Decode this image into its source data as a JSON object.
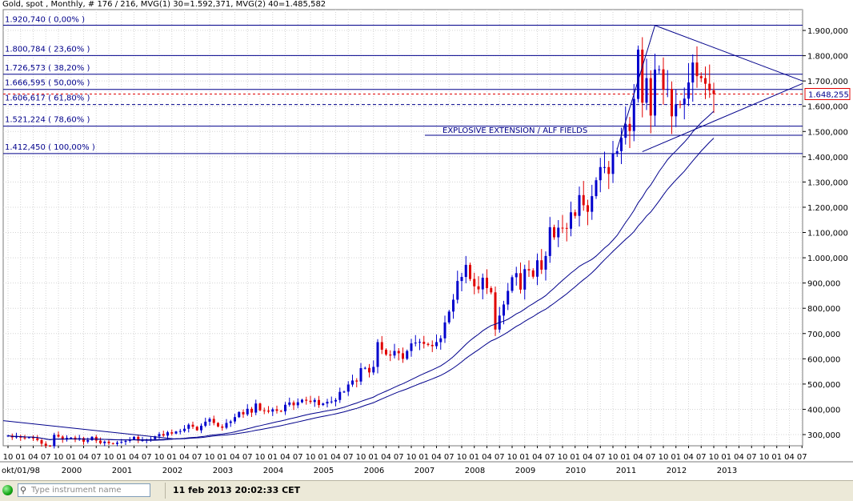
{
  "header": {
    "title": "Gold, spot , Monthly, # 176 / 216, MVG(1) 30=1.592,371, MVG(2) 40=1.485,582"
  },
  "last_price": "1.648,255",
  "annotation": "EXPLOSIVE EXTENSION / ALF FIELDS",
  "colors": {
    "line": "#00008b",
    "up": "#0000cc",
    "down": "#e00000",
    "grid": "#d4d4d4"
  },
  "fib_levels": [
    {
      "value": 1920.74,
      "label": "1.920,740 ( 0,00% )"
    },
    {
      "value": 1800.784,
      "label": "1.800,784 ( 23,60% )"
    },
    {
      "value": 1726.573,
      "label": "1.726,573 ( 38,20% )"
    },
    {
      "value": 1666.595,
      "label": "1.666,595 ( 50,00% )"
    },
    {
      "value": 1606.617,
      "label": "1.606,617 ( 61,80% )"
    },
    {
      "value": 1521.224,
      "label": "1.521,224 ( 78,60% )"
    },
    {
      "value": 1412.45,
      "label": "1.412,450 ( 100,00% )"
    }
  ],
  "statusbar": {
    "search_placeholder": "Type instrument name",
    "search_icon": "search-icon",
    "datetime": "11 feb 2013 20:02:33 CET"
  },
  "chart_data": {
    "type": "candlestick",
    "title": "Gold, spot , Monthly",
    "ylim": [
      250,
      1950
    ],
    "y_ticks": [
      {
        "v": 300,
        "label": "300,000"
      },
      {
        "v": 400,
        "label": "400,000"
      },
      {
        "v": 500,
        "label": "500,000"
      },
      {
        "v": 600,
        "label": "600,000"
      },
      {
        "v": 700,
        "label": "700,000"
      },
      {
        "v": 800,
        "label": "800,000"
      },
      {
        "v": 900,
        "label": "900,000"
      },
      {
        "v": 1000,
        "label": "1.000,000"
      },
      {
        "v": 1100,
        "label": "1.100,000"
      },
      {
        "v": 1200,
        "label": "1.200,000"
      },
      {
        "v": 1300,
        "label": "1.300,000"
      },
      {
        "v": 1400,
        "label": "1.400,000"
      },
      {
        "v": 1500,
        "label": "1.500,000"
      },
      {
        "v": 1600,
        "label": "1.600,000"
      },
      {
        "v": 1700,
        "label": "1.700,000"
      },
      {
        "v": 1800,
        "label": "1.800,000"
      },
      {
        "v": 1900,
        "label": "1.900,000"
      }
    ],
    "x_month_labels": [
      "10",
      "01",
      "04",
      "07",
      "10",
      "01",
      "04",
      "07",
      "10",
      "01",
      "04",
      "07",
      "10",
      "01",
      "04",
      "07",
      "10",
      "01",
      "04",
      "07",
      "10",
      "01",
      "04",
      "07",
      "10",
      "01",
      "04",
      "07",
      "10",
      "01",
      "04",
      "07",
      "10",
      "01",
      "04",
      "07",
      "10",
      "01",
      "04",
      "07",
      "10",
      "01",
      "04",
      "07",
      "10",
      "01",
      "04",
      "07",
      "10",
      "01",
      "04",
      "07",
      "10",
      "01",
      "04",
      "07",
      "10",
      "01",
      "04",
      "07",
      "10",
      "01",
      "04",
      "07"
    ],
    "x_year_labels": [
      {
        "label": "okt/01/98",
        "m": 0
      },
      {
        "label": "2000",
        "m": 15
      },
      {
        "label": "2001",
        "m": 27
      },
      {
        "label": "2002",
        "m": 39
      },
      {
        "label": "2003",
        "m": 51
      },
      {
        "label": "2004",
        "m": 63
      },
      {
        "label": "2005",
        "m": 75
      },
      {
        "label": "2006",
        "m": 87
      },
      {
        "label": "2007",
        "m": 99
      },
      {
        "label": "2008",
        "m": 111
      },
      {
        "label": "2009",
        "m": 123
      },
      {
        "label": "2010",
        "m": 135
      },
      {
        "label": "2011",
        "m": 147
      },
      {
        "label": "2012",
        "m": 159
      },
      {
        "label": "2013",
        "m": 171
      }
    ],
    "x_months_total": 192,
    "series_close": [
      296,
      289,
      294,
      288,
      287,
      289,
      285,
      278,
      264,
      256,
      254,
      299,
      292,
      280,
      287,
      288,
      280,
      286,
      272,
      278,
      291,
      276,
      266,
      272,
      266,
      263,
      268,
      271,
      275,
      280,
      291,
      276,
      278,
      279,
      282,
      293,
      302,
      296,
      309,
      304,
      312,
      314,
      323,
      339,
      331,
      317,
      335,
      351,
      362,
      346,
      332,
      327,
      346,
      352,
      369,
      389,
      380,
      402,
      387,
      423,
      396,
      395,
      391,
      400,
      394,
      392,
      418,
      427,
      416,
      428,
      438,
      434,
      429,
      437,
      417,
      423,
      430,
      431,
      437,
      469,
      470,
      498,
      514,
      510,
      563,
      564,
      546,
      568,
      666,
      636,
      617,
      613,
      631,
      622,
      600,
      631,
      661,
      664,
      667,
      659,
      655,
      650,
      666,
      681,
      744,
      787,
      834,
      908,
      924,
      972,
      916,
      887,
      875,
      921,
      880,
      863,
      716,
      771,
      815,
      869,
      923,
      939,
      874,
      955,
      950,
      925,
      990,
      953,
      1007,
      1121,
      1081,
      1119,
      1118,
      1115,
      1180,
      1166,
      1248,
      1208,
      1182,
      1244,
      1307,
      1359,
      1359,
      1332,
      1412,
      1422,
      1475,
      1530,
      1502,
      1629,
      1824,
      1614,
      1711,
      1563,
      1745,
      1746,
      1666,
      1668,
      1560,
      1608,
      1606,
      1630,
      1694,
      1773,
      1719,
      1711,
      1689,
      1663,
      1648
    ],
    "wick_spread": 0.045
  }
}
